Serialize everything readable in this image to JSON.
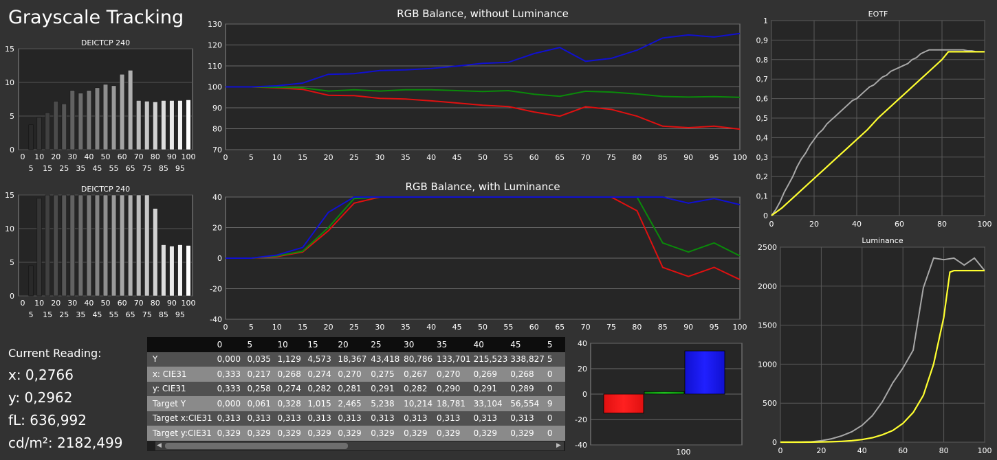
{
  "page_title": "Grayscale Tracking",
  "reading": {
    "heading": "Current Reading:",
    "x": "x: 0,2766",
    "y": "y: 0,2962",
    "fl": "fL: 636,992",
    "cdm2": "cd/m²: 2182,499"
  },
  "table": {
    "headers": [
      "0",
      "5",
      "10",
      "15",
      "20",
      "25",
      "30",
      "35",
      "40",
      "45",
      "5"
    ],
    "rows": [
      {
        "label": "Y",
        "values": [
          "0,000",
          "0,035",
          "1,129",
          "4,573",
          "18,367",
          "43,418",
          "80,786",
          "133,701",
          "215,523",
          "338,827",
          "5"
        ]
      },
      {
        "label": "x: CIE31",
        "values": [
          "0,333",
          "0,217",
          "0,268",
          "0,274",
          "0,270",
          "0,275",
          "0,267",
          "0,270",
          "0,269",
          "0,268",
          "0"
        ]
      },
      {
        "label": "y: CIE31",
        "values": [
          "0,333",
          "0,258",
          "0,274",
          "0,282",
          "0,281",
          "0,291",
          "0,282",
          "0,290",
          "0,291",
          "0,289",
          "0"
        ]
      },
      {
        "label": "Target Y",
        "values": [
          "0,000",
          "0,061",
          "0,328",
          "1,015",
          "2,465",
          "5,238",
          "10,214",
          "18,781",
          "33,104",
          "56,554",
          "9"
        ]
      },
      {
        "label": "Target x:CIE31",
        "values": [
          "0,313",
          "0,313",
          "0,313",
          "0,313",
          "0,313",
          "0,313",
          "0,313",
          "0,313",
          "0,313",
          "0,313",
          "0"
        ]
      },
      {
        "label": "Target y:CIE31",
        "values": [
          "0,329",
          "0,329",
          "0,329",
          "0,329",
          "0,329",
          "0,329",
          "0,329",
          "0,329",
          "0,329",
          "0,329",
          "0"
        ]
      }
    ]
  },
  "colors": {
    "red": "#e01010",
    "green": "#0a8a0a",
    "blue": "#1010d0",
    "yellow": "#ffff30",
    "gray": "#a8a8a8"
  },
  "chart_data": [
    {
      "id": "bar1",
      "type": "bar",
      "title": "DEICTCP 240",
      "categories": [
        "0",
        "5",
        "10",
        "15",
        "20",
        "25",
        "30",
        "35",
        "40",
        "45",
        "50",
        "55",
        "60",
        "65",
        "70",
        "75",
        "80",
        "85",
        "90",
        "95",
        "100"
      ],
      "values": [
        0,
        3.7,
        4.8,
        5.5,
        7.2,
        6.8,
        8.8,
        8.4,
        8.8,
        9.2,
        9.7,
        9.5,
        11.2,
        11.8,
        7.3,
        7.2,
        7.1,
        7.3,
        7.3,
        7.3,
        7.4
      ],
      "ylim": [
        0,
        15
      ],
      "yticks": [
        "0",
        "5",
        "10",
        "15"
      ],
      "xticks_top": [
        "0",
        "10",
        "20",
        "30",
        "40",
        "50",
        "60",
        "70",
        "80",
        "90",
        "100"
      ],
      "xticks_bottom": [
        "5",
        "15",
        "25",
        "35",
        "45",
        "55",
        "65",
        "75",
        "85",
        "95"
      ]
    },
    {
      "id": "bar2",
      "type": "bar",
      "title": "DEICTCP 240",
      "categories": [
        "0",
        "5",
        "10",
        "15",
        "20",
        "25",
        "30",
        "35",
        "40",
        "45",
        "50",
        "55",
        "60",
        "65",
        "70",
        "75",
        "80",
        "85",
        "90",
        "95",
        "100"
      ],
      "values": [
        0,
        4.5,
        14.5,
        15,
        15,
        15,
        15,
        15,
        15,
        15,
        15,
        15,
        15,
        15,
        15,
        15,
        13,
        7.6,
        7.4,
        7.6,
        7.5
      ],
      "ylim": [
        0,
        15
      ],
      "yticks": [
        "0",
        "5",
        "10",
        "15"
      ],
      "xticks_top": [
        "0",
        "10",
        "20",
        "30",
        "40",
        "50",
        "60",
        "70",
        "80",
        "90",
        "100"
      ],
      "xticks_bottom": [
        "5",
        "15",
        "25",
        "35",
        "45",
        "55",
        "65",
        "75",
        "85",
        "95"
      ]
    },
    {
      "id": "rgb1",
      "type": "line",
      "title": "RGB Balance, without Luminance",
      "x": [
        0,
        5,
        10,
        15,
        20,
        25,
        30,
        35,
        40,
        45,
        50,
        55,
        60,
        65,
        70,
        75,
        80,
        85,
        90,
        95,
        100
      ],
      "ylim": [
        70,
        130
      ],
      "yticks": [
        "70",
        "80",
        "90",
        "100",
        "110",
        "120",
        "130"
      ],
      "xticks": [
        "0",
        "5",
        "10",
        "15",
        "20",
        "25",
        "30",
        "35",
        "40",
        "45",
        "50",
        "55",
        "60",
        "65",
        "70",
        "75",
        "80",
        "85",
        "90",
        "95",
        "100"
      ],
      "series": [
        {
          "color": "red",
          "values": [
            100,
            100,
            99.5,
            98.8,
            96,
            95.8,
            94.5,
            94.2,
            93.3,
            92.3,
            91.2,
            90.6,
            88,
            86,
            90.5,
            89.2,
            86,
            81.2,
            80.5,
            81.2,
            79.8
          ]
        },
        {
          "color": "green",
          "values": [
            100,
            100,
            99.8,
            99.5,
            98,
            98.6,
            98,
            98.6,
            98.6,
            98.2,
            97.8,
            98.2,
            96.5,
            95.5,
            97.9,
            97.5,
            96.6,
            95.4,
            95.1,
            95.3,
            95
          ]
        },
        {
          "color": "blue",
          "values": [
            100,
            100,
            100.5,
            101.8,
            106,
            106.3,
            107.8,
            108.1,
            108.8,
            109.9,
            111.2,
            111.7,
            115.9,
            118.8,
            112.2,
            113.6,
            117.5,
            123.3,
            124.8,
            123.8,
            125.5
          ]
        }
      ]
    },
    {
      "id": "rgb2",
      "type": "line",
      "title": "RGB Balance, with Luminance",
      "x": [
        0,
        5,
        10,
        15,
        20,
        25,
        30,
        35,
        40,
        45,
        50,
        55,
        60,
        65,
        70,
        75,
        80,
        85,
        90,
        95,
        100
      ],
      "ylim": [
        -40,
        40
      ],
      "yticks": [
        "-40",
        "-20",
        "0",
        "20",
        "40"
      ],
      "xticks": [
        "0",
        "5",
        "10",
        "15",
        "20",
        "25",
        "30",
        "35",
        "40",
        "45",
        "50",
        "55",
        "60",
        "65",
        "70",
        "75",
        "80",
        "85",
        "90",
        "95",
        "100"
      ],
      "series": [
        {
          "color": "red",
          "values": [
            0,
            0,
            1,
            4,
            18,
            36,
            40,
            40,
            40,
            40,
            40,
            40,
            40,
            40,
            40,
            40,
            31,
            -6,
            -12,
            -6,
            -14
          ]
        },
        {
          "color": "green",
          "values": [
            0,
            0,
            1.5,
            4.5,
            20,
            39,
            40,
            40,
            40,
            40,
            40,
            40,
            40,
            40,
            40,
            40,
            40,
            10,
            4,
            10,
            1.5
          ]
        },
        {
          "color": "blue",
          "values": [
            0,
            0,
            2,
            7,
            30,
            40,
            40,
            40,
            40,
            40,
            40,
            40,
            40,
            40,
            40,
            40,
            40,
            40,
            36,
            39,
            35
          ]
        }
      ]
    },
    {
      "id": "eotf",
      "type": "line",
      "title": "EOTF",
      "xlim": [
        0,
        100
      ],
      "ylim": [
        0,
        1
      ],
      "yticks": [
        "0",
        "0,1",
        "0,2",
        "0,3",
        "0,4",
        "0,5",
        "0,6",
        "0,7",
        "0,8",
        "0,9",
        "1"
      ],
      "xticks": [
        "0",
        "20",
        "40",
        "60",
        "80",
        "100"
      ],
      "series": [
        {
          "color": "gray",
          "x": [
            0,
            2,
            4,
            6,
            8,
            10,
            12,
            14,
            16,
            18,
            20,
            22,
            24,
            26,
            28,
            30,
            32,
            34,
            36,
            38,
            40,
            42,
            44,
            46,
            48,
            50,
            52,
            54,
            56,
            58,
            60,
            62,
            64,
            66,
            68,
            70,
            72,
            74,
            76,
            78,
            80,
            82,
            84,
            86,
            88,
            90,
            92,
            94,
            96,
            98,
            100
          ],
          "y": [
            0,
            0.03,
            0.07,
            0.12,
            0.16,
            0.2,
            0.25,
            0.29,
            0.32,
            0.36,
            0.39,
            0.42,
            0.44,
            0.47,
            0.49,
            0.51,
            0.53,
            0.55,
            0.57,
            0.59,
            0.6,
            0.62,
            0.64,
            0.66,
            0.67,
            0.69,
            0.71,
            0.72,
            0.74,
            0.75,
            0.76,
            0.77,
            0.78,
            0.8,
            0.81,
            0.83,
            0.84,
            0.85,
            0.85,
            0.85,
            0.85,
            0.85,
            0.85,
            0.85,
            0.85,
            0.85,
            0.845,
            0.845,
            0.84,
            0.84,
            0.84
          ]
        },
        {
          "color": "yellow",
          "x": [
            0,
            5,
            10,
            15,
            20,
            25,
            30,
            35,
            40,
            45,
            50,
            55,
            60,
            65,
            70,
            75,
            80,
            83,
            85,
            90,
            95,
            100
          ],
          "y": [
            0,
            0.04,
            0.09,
            0.14,
            0.19,
            0.24,
            0.29,
            0.34,
            0.39,
            0.44,
            0.5,
            0.55,
            0.6,
            0.65,
            0.7,
            0.75,
            0.8,
            0.84,
            0.84,
            0.84,
            0.84,
            0.84
          ]
        }
      ]
    },
    {
      "id": "lum",
      "type": "line",
      "title": "Luminance",
      "xlim": [
        0,
        100
      ],
      "ylim": [
        0,
        2500
      ],
      "yticks": [
        "0",
        "500",
        "1000",
        "1500",
        "2000",
        "2500"
      ],
      "xticks": [
        "0",
        "20",
        "40",
        "60",
        "80",
        "100"
      ],
      "series": [
        {
          "color": "gray",
          "x": [
            0,
            5,
            10,
            15,
            20,
            25,
            30,
            35,
            40,
            45,
            50,
            55,
            60,
            65,
            70,
            75,
            80,
            85,
            90,
            95,
            100
          ],
          "y": [
            0,
            0.035,
            1.1,
            4.6,
            18.4,
            43.4,
            80.8,
            133.7,
            215.5,
            338.8,
            520,
            760,
            950,
            1180,
            1980,
            2360,
            2340,
            2360,
            2270,
            2360,
            2200
          ]
        },
        {
          "color": "yellow",
          "x": [
            0,
            5,
            10,
            15,
            20,
            25,
            30,
            35,
            40,
            45,
            50,
            55,
            60,
            65,
            70,
            75,
            80,
            83,
            85,
            90,
            95,
            100
          ],
          "y": [
            0,
            0.06,
            0.33,
            1,
            2.5,
            5.2,
            10.2,
            18.8,
            33.1,
            56.6,
            95,
            150,
            240,
            380,
            600,
            1000,
            1600,
            2180,
            2200,
            2200,
            2200,
            2200
          ]
        }
      ]
    },
    {
      "id": "rgbbar",
      "type": "bar",
      "title": "",
      "categories": [
        "red",
        "green",
        "blue"
      ],
      "values": [
        -15,
        2,
        34
      ],
      "ylim": [
        -40,
        40
      ],
      "yticks": [
        "-40",
        "-20",
        "0",
        "20",
        "40"
      ],
      "xlabel": "100"
    }
  ]
}
